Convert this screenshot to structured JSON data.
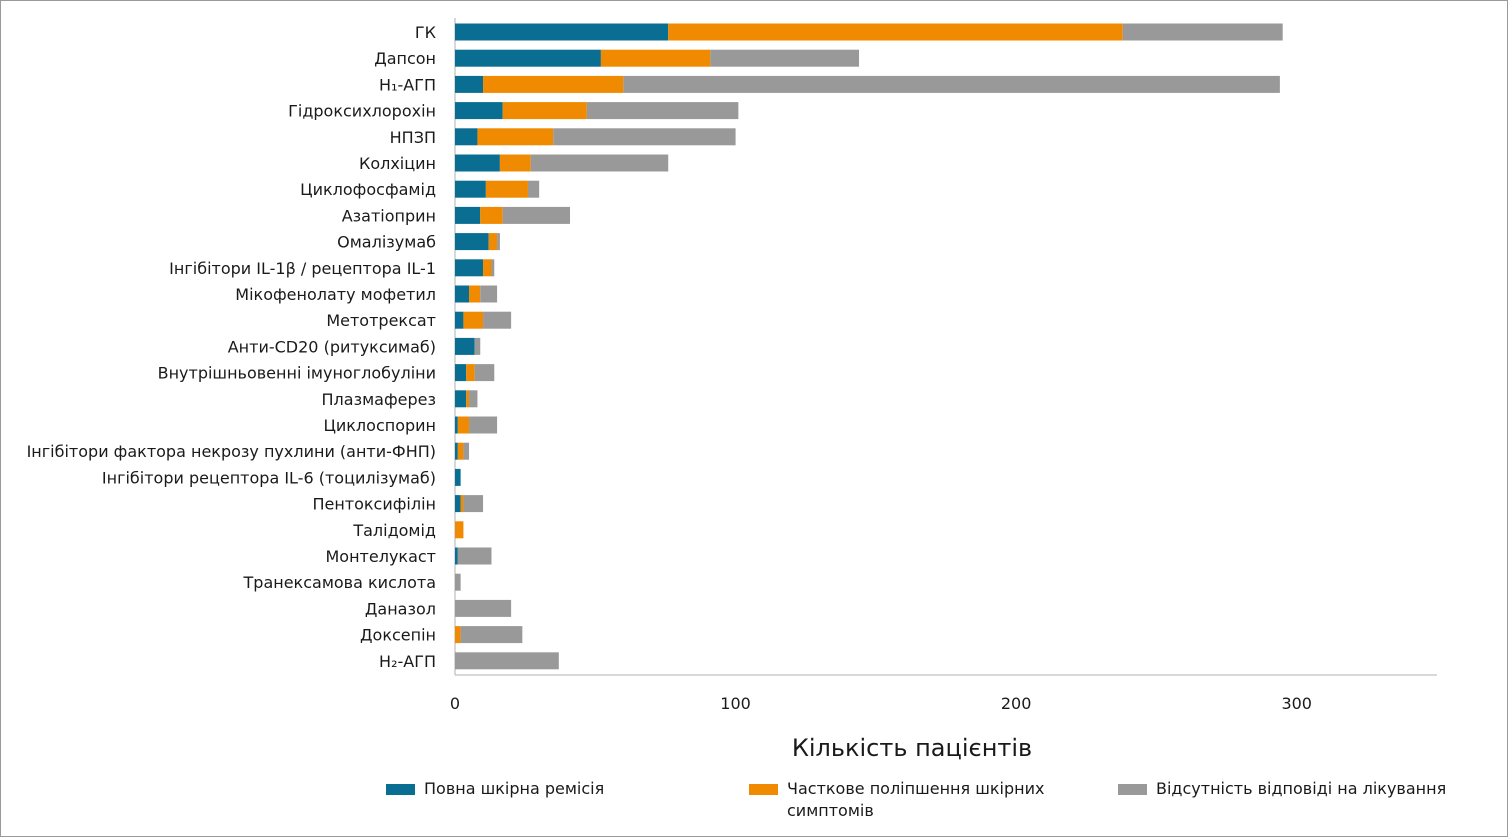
{
  "chart_data": {
    "type": "bar",
    "orientation": "horizontal",
    "stacked": true,
    "title": "",
    "xlabel": "Кількість пацієнтів",
    "ylabel": "",
    "xlim": [
      0,
      350
    ],
    "xticks": [
      0,
      100,
      200,
      300
    ],
    "grid": false,
    "legend_position": "bottom",
    "categories": [
      "ГК",
      "Дапсон",
      "H₁-АГП",
      "Гідроксихлорохін",
      "НПЗП",
      "Колхіцин",
      "Циклофосфамід",
      "Азатіоприн",
      "Омалізумаб",
      "Інгібітори IL-1β / рецептора IL-1",
      "Мікофенолату мофетил",
      "Метотрексат",
      "Анти-CD20 (ритуксимаб)",
      "Внутрішньовенні імуноглобуліни",
      "Плазмаферез",
      "Циклоспорин",
      "Інгібітори фактора некрозу пухлини (анти-ФНП)",
      "Інгібітори рецептора IL-6 (тоцилізумаб)",
      "Пентоксифілін",
      "Талідомід",
      "Монтелукаст",
      "Транексамова кислота",
      "Даназол",
      "Доксепін",
      "H₂-АГП"
    ],
    "series": [
      {
        "name": "Повна шкірна ремісія",
        "color": "#0a6e93",
        "values": [
          76,
          52,
          10,
          17,
          8,
          16,
          11,
          9,
          12,
          10,
          5,
          3,
          7,
          4,
          4,
          1,
          1,
          2,
          2,
          0,
          1,
          0,
          0,
          0,
          0
        ]
      },
      {
        "name": "Часткове поліпшення шкірних симптомів",
        "color": "#f08a00",
        "values": [
          162,
          39,
          50,
          30,
          27,
          11,
          15,
          8,
          3,
          3,
          4,
          7,
          0,
          3,
          1,
          4,
          2,
          0,
          1,
          3,
          0,
          0,
          0,
          2,
          0
        ]
      },
      {
        "name": "Відсутність відповіді на лікування",
        "color": "#999999",
        "values": [
          57,
          53,
          234,
          54,
          65,
          49,
          4,
          24,
          1,
          1,
          6,
          10,
          2,
          7,
          3,
          10,
          2,
          0,
          7,
          0,
          12,
          2,
          20,
          22,
          37
        ]
      }
    ]
  }
}
